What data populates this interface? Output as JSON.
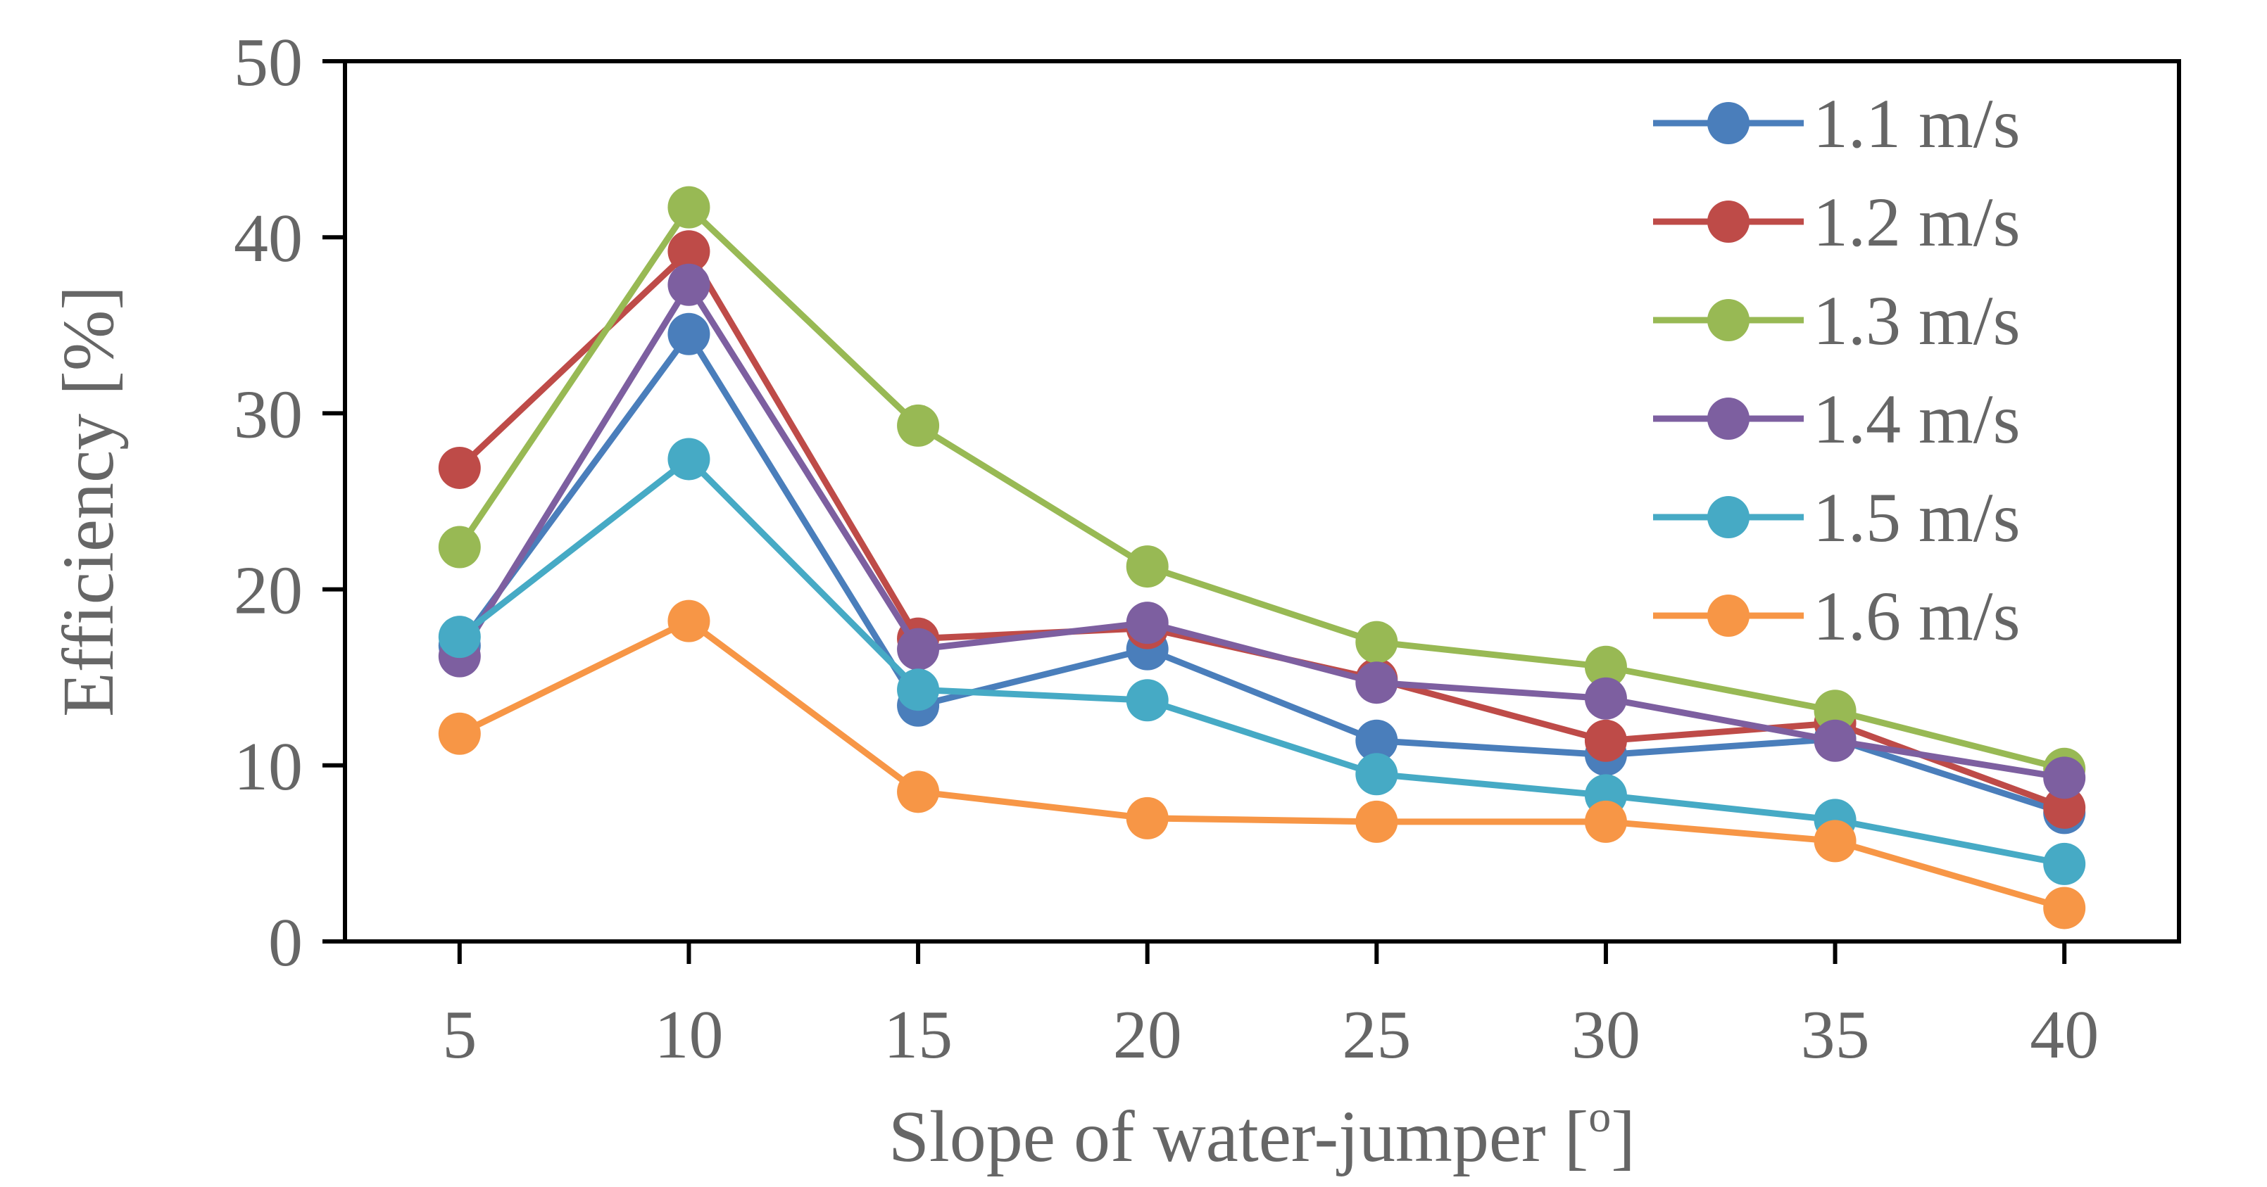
{
  "chart_data": {
    "type": "line",
    "title": "",
    "xlabel": "Slope of water-jumper [",
    "xlabel_superscript": "o",
    "xlabel_suffix": "]",
    "ylabel": "Efficiency [%]",
    "x": [
      5,
      10,
      15,
      20,
      25,
      30,
      35,
      40
    ],
    "x_tick_labels": [
      "5",
      "10",
      "15",
      "20",
      "25",
      "30",
      "35",
      "40"
    ],
    "ylim": [
      0,
      50
    ],
    "y_ticks": [
      0,
      10,
      20,
      30,
      40,
      50
    ],
    "y_tick_labels": [
      "0",
      "10",
      "20",
      "30",
      "40",
      "50"
    ],
    "grid": false,
    "legend_position": "top-right",
    "series": [
      {
        "name": "1.1 m/s",
        "color": "#4a7ebb",
        "values": [
          16.8,
          34.5,
          13.4,
          16.6,
          11.4,
          10.6,
          11.5,
          7.3
        ]
      },
      {
        "name": "1.2 m/s",
        "color": "#be4b48",
        "values": [
          26.9,
          39.2,
          17.2,
          17.8,
          14.9,
          11.4,
          12.4,
          7.6
        ]
      },
      {
        "name": "1.3 m/s",
        "color": "#98b954",
        "values": [
          22.4,
          41.7,
          29.3,
          21.3,
          17.0,
          15.6,
          13.1,
          9.8
        ]
      },
      {
        "name": "1.4 m/s",
        "color": "#7d5fa0",
        "values": [
          16.2,
          37.3,
          16.6,
          18.1,
          14.7,
          13.8,
          11.4,
          9.3
        ]
      },
      {
        "name": "1.5 m/s",
        "color": "#46aac5",
        "values": [
          17.3,
          27.4,
          14.3,
          13.7,
          9.5,
          8.3,
          6.9,
          4.4
        ]
      },
      {
        "name": "1.6 m/s",
        "color": "#f79646",
        "values": [
          11.8,
          18.2,
          8.5,
          7.0,
          6.8,
          6.8,
          5.7,
          1.9
        ]
      }
    ]
  }
}
